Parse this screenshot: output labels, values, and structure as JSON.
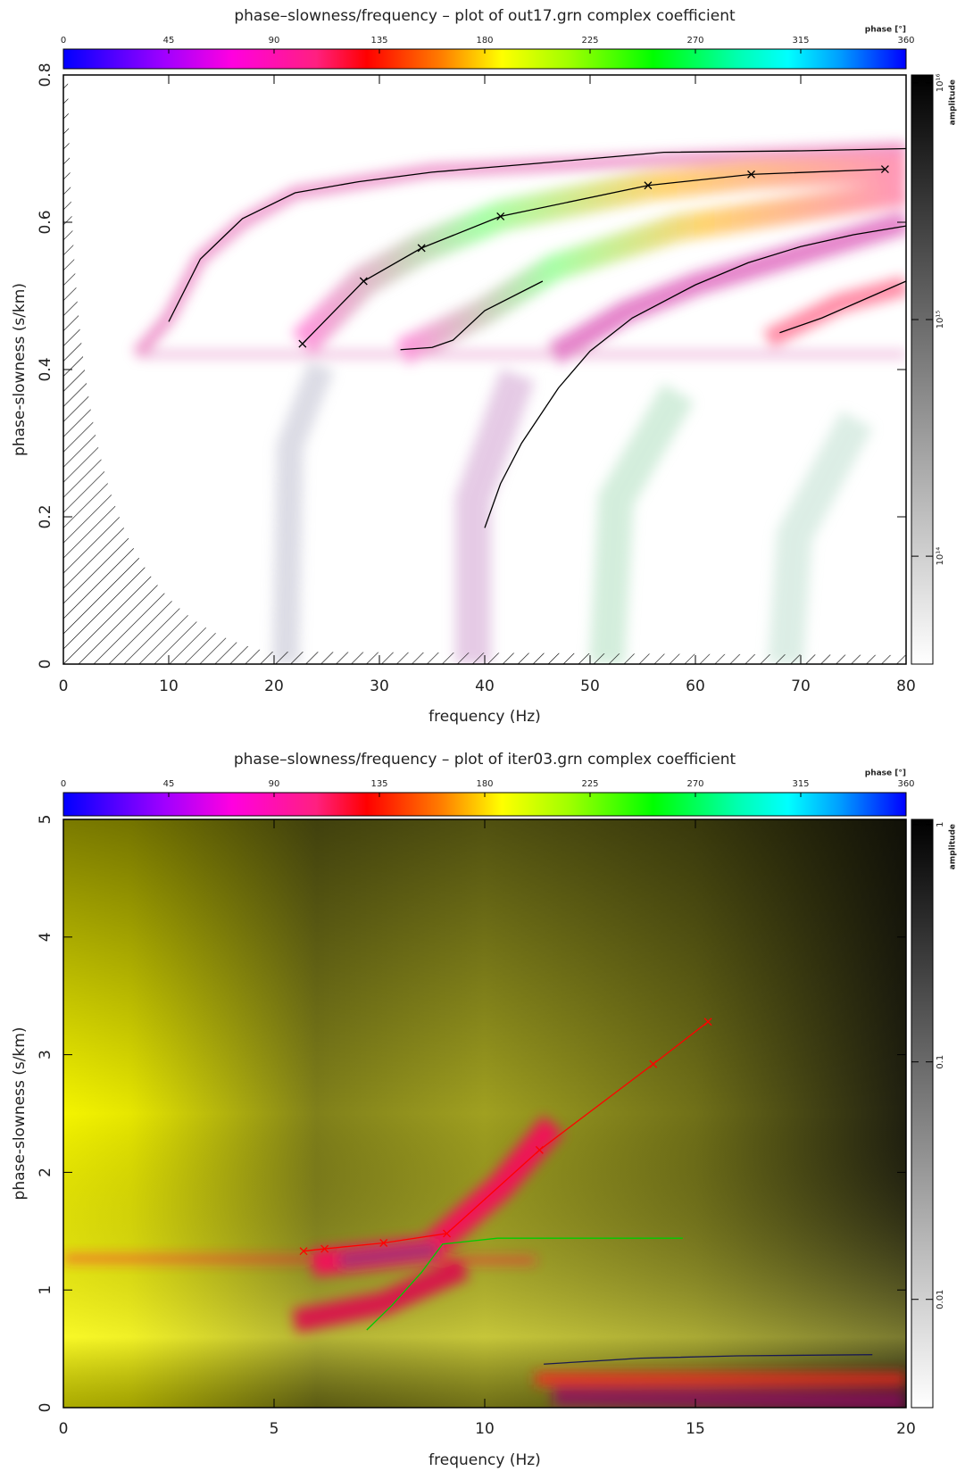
{
  "chart_data": [
    {
      "type": "line",
      "title": "phase–slowness/frequency – plot of out17.grn complex coefficient",
      "x_label": "frequency (Hz)",
      "y_label": "phase-slowness (s/km)",
      "xlim": [
        0,
        80
      ],
      "xticks": [
        0,
        10,
        20,
        30,
        40,
        50,
        60,
        70,
        80
      ],
      "ylim": [
        0,
        0.8
      ],
      "yticks": [
        0,
        0.2,
        0.4,
        0.6,
        0.8
      ],
      "phase_label": "phase [°]",
      "phase_lim": [
        0,
        360
      ],
      "phase_ticks": [
        0,
        45,
        90,
        135,
        180,
        225,
        270,
        315,
        360
      ],
      "amplitude_label": "amplitude",
      "amplitude_scale": "log",
      "amplitude_lim": [
        35000000000000.0,
        1.08e+16
      ],
      "amplitude_ticks": [
        {
          "value": 100000000000000.0,
          "label": "10¹⁴"
        },
        {
          "value": 1000000000000000.0,
          "label": "10¹⁵"
        },
        {
          "value": 1e+16,
          "label": "10¹⁶"
        }
      ],
      "series": [
        {
          "color": "#000000",
          "markers": false,
          "x": [
            10,
            13,
            17,
            22,
            28,
            35,
            45,
            57,
            70,
            80
          ],
          "values": [
            0.465,
            0.55,
            0.605,
            0.64,
            0.655,
            0.668,
            0.68,
            0.695,
            0.697,
            0.7
          ]
        },
        {
          "color": "#000000",
          "markers": true,
          "x": [
            22.7,
            28.5,
            34,
            41.5,
            55.5,
            65.3,
            78
          ],
          "values": [
            0.435,
            0.52,
            0.565,
            0.608,
            0.65,
            0.665,
            0.672
          ]
        },
        {
          "color": "#000000",
          "markers": false,
          "x": [
            32,
            35,
            37,
            40,
            45.5
          ],
          "values": [
            0.427,
            0.43,
            0.44,
            0.48,
            0.52
          ]
        },
        {
          "color": "#000000",
          "markers": false,
          "x": [
            40,
            41.5,
            43.5,
            47,
            50,
            54,
            60,
            65,
            70,
            75,
            80
          ],
          "values": [
            0.185,
            0.245,
            0.3,
            0.375,
            0.425,
            0.47,
            0.515,
            0.545,
            0.567,
            0.583,
            0.595
          ]
        },
        {
          "color": "#000000",
          "markers": false,
          "x": [
            68,
            72,
            76,
            80
          ],
          "values": [
            0.45,
            0.47,
            0.495,
            0.52
          ]
        }
      ]
    },
    {
      "type": "line",
      "title": "phase–slowness/frequency – plot of iter03.grn complex coefficient",
      "x_label": "frequency (Hz)",
      "y_label": "phase-slowness (s/km)",
      "xlim": [
        0,
        20
      ],
      "xticks": [
        0,
        5,
        10,
        15,
        20
      ],
      "ylim": [
        0,
        5
      ],
      "yticks": [
        0,
        1,
        2,
        3,
        4,
        5
      ],
      "phase_label": "phase [°]",
      "phase_lim": [
        0,
        360
      ],
      "phase_ticks": [
        0,
        45,
        90,
        135,
        180,
        225,
        270,
        315,
        360
      ],
      "amplitude_label": "amplitude",
      "amplitude_scale": "log",
      "amplitude_lim": [
        0.0035,
        1.05
      ],
      "amplitude_ticks": [
        0.01,
        0.1,
        1
      ],
      "series": [
        {
          "color": "#ff0000",
          "markers": true,
          "x": [
            5.7,
            6.2,
            7.6,
            9.1,
            11.3,
            14.0,
            15.3
          ],
          "values": [
            1.33,
            1.35,
            1.4,
            1.48,
            2.19,
            2.92,
            3.28
          ]
        },
        {
          "color": "#00cc00",
          "markers": false,
          "x": [
            7.2,
            7.8,
            8.5,
            9.0,
            10.3,
            14.7
          ],
          "values": [
            0.66,
            0.87,
            1.15,
            1.39,
            1.44,
            1.44
          ]
        },
        {
          "color": "#1a1a50",
          "markers": false,
          "x": [
            11.4,
            13.7,
            16,
            19.2
          ],
          "values": [
            0.37,
            0.42,
            0.44,
            0.45
          ]
        }
      ]
    }
  ]
}
